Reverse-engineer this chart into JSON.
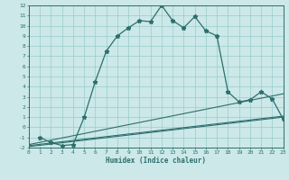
{
  "xlabel": "Humidex (Indice chaleur)",
  "background_color": "#cce8e8",
  "grid_color": "#99cccc",
  "line_color": "#2e6e6e",
  "xlim": [
    0,
    23
  ],
  "ylim": [
    -2,
    12
  ],
  "xticks": [
    0,
    1,
    2,
    3,
    4,
    5,
    6,
    7,
    8,
    9,
    10,
    11,
    12,
    13,
    14,
    15,
    16,
    17,
    18,
    19,
    20,
    21,
    22,
    23
  ],
  "yticks": [
    -2,
    -1,
    0,
    1,
    2,
    3,
    4,
    5,
    6,
    7,
    8,
    9,
    10,
    11,
    12
  ],
  "main_x": [
    1,
    2,
    3,
    4,
    5,
    6,
    7,
    8,
    9,
    10,
    11,
    12,
    13,
    14,
    15,
    16,
    17,
    18,
    19,
    20,
    21,
    22,
    23
  ],
  "main_y": [
    -1.0,
    -1.5,
    -1.8,
    -1.7,
    1.0,
    4.5,
    7.5,
    9.0,
    9.8,
    10.5,
    10.4,
    12.0,
    10.5,
    9.8,
    10.9,
    9.5,
    9.0,
    3.5,
    2.5,
    2.7,
    3.5,
    2.8,
    0.8
  ],
  "line2_x": [
    0,
    23
  ],
  "line2_y": [
    -1.7,
    3.3
  ],
  "line3_x": [
    0,
    23
  ],
  "line3_y": [
    -1.8,
    1.1
  ],
  "line4_x": [
    0,
    23
  ],
  "line4_y": [
    -1.9,
    1.0
  ]
}
